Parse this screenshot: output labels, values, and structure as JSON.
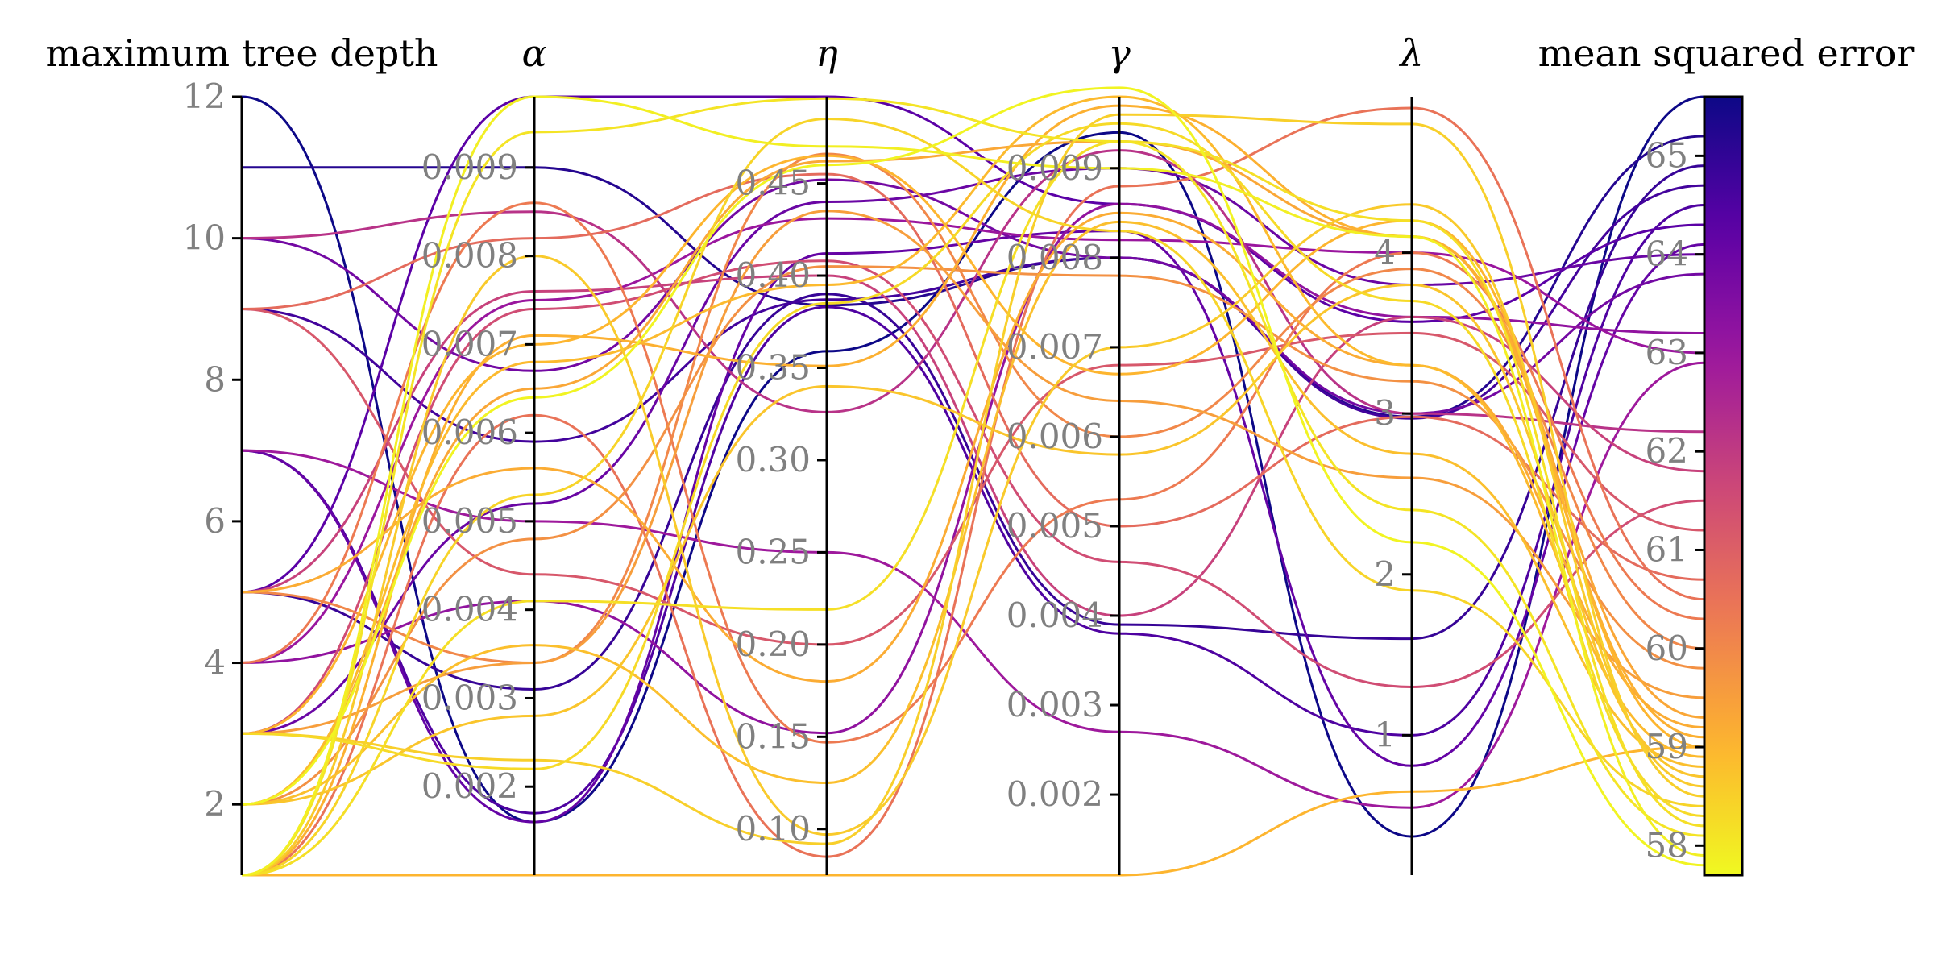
{
  "chart_data": {
    "type": "parallel-coordinates",
    "title": "",
    "colormap": "plasma",
    "colormap_stops": [
      "#0d0887",
      "#5c01a6",
      "#9c179e",
      "#cc4778",
      "#ed7953",
      "#fdb42f",
      "#f0f921"
    ],
    "axes": [
      {
        "key": "depth",
        "label": "maximum tree depth",
        "min": 1,
        "max": 12,
        "ticks": [
          2,
          4,
          6,
          8,
          10,
          12
        ],
        "tick_labels": [
          "2",
          "4",
          "6",
          "8",
          "10",
          "12"
        ]
      },
      {
        "key": "alpha",
        "label": "α",
        "min": 0.001,
        "max": 0.0098,
        "ticks": [
          0.002,
          0.003,
          0.004,
          0.005,
          0.006,
          0.007,
          0.008,
          0.009
        ],
        "tick_labels": [
          "0.002",
          "0.003",
          "0.004",
          "0.005",
          "0.006",
          "0.007",
          "0.008",
          "0.009"
        ]
      },
      {
        "key": "eta",
        "label": "η",
        "min": 0.075,
        "max": 0.497,
        "ticks": [
          0.1,
          0.15,
          0.2,
          0.25,
          0.3,
          0.35,
          0.4,
          0.45
        ],
        "tick_labels": [
          "0.10",
          "0.15",
          "0.20",
          "0.25",
          "0.30",
          "0.35",
          "0.40",
          "0.45"
        ]
      },
      {
        "key": "gamma",
        "label": "γ",
        "min": 0.0011,
        "max": 0.0098,
        "ticks": [
          0.002,
          0.003,
          0.004,
          0.005,
          0.006,
          0.007,
          0.008,
          0.009
        ],
        "tick_labels": [
          "0.002",
          "0.003",
          "0.004",
          "0.005",
          "0.006",
          "0.007",
          "0.008",
          "0.009"
        ]
      },
      {
        "key": "lambda",
        "label": "λ",
        "min": 0.13,
        "max": 4.97,
        "ticks": [
          1,
          2,
          3,
          4
        ],
        "tick_labels": [
          "1",
          "2",
          "3",
          "4"
        ]
      },
      {
        "key": "mse",
        "label": "mean squared error",
        "min": 57.7,
        "max": 65.6,
        "ticks": [
          58,
          59,
          60,
          61,
          62,
          63,
          64,
          65
        ],
        "tick_labels": [
          "58",
          "59",
          "60",
          "61",
          "62",
          "63",
          "64",
          "65"
        ]
      }
    ],
    "records": [
      [
        12,
        0.0016,
        0.359,
        0.0094,
        0.37,
        65.6
      ],
      [
        11,
        0.009,
        0.384,
        0.008,
        2.98,
        65.2
      ],
      [
        9,
        0.0059,
        0.387,
        0.008,
        2.97,
        64.7
      ],
      [
        7,
        0.0016,
        0.412,
        0.0083,
        0.81,
        64.1
      ],
      [
        7,
        0.0017,
        0.383,
        0.0038,
        1.0,
        64.5
      ],
      [
        5,
        0.0031,
        0.39,
        0.0039,
        1.6,
        64.9
      ],
      [
        5,
        0.0098,
        0.497,
        0.0086,
        3.57,
        64.3
      ],
      [
        7,
        0.005,
        0.25,
        0.0027,
        0.55,
        62.9
      ],
      [
        10,
        0.0067,
        0.452,
        0.008,
        3.0,
        63.8
      ],
      [
        3,
        0.0052,
        0.44,
        0.009,
        3.8,
        64.0
      ],
      [
        4,
        0.0075,
        0.431,
        0.0082,
        4.0,
        63.0
      ],
      [
        5,
        0.0076,
        0.4,
        0.004,
        3.6,
        61.8
      ],
      [
        9,
        0.0082,
        0.455,
        0.005,
        2.98,
        60.7
      ],
      [
        4,
        0.0041,
        0.152,
        0.0086,
        3.6,
        63.2
      ],
      [
        3,
        0.0074,
        0.408,
        0.0046,
        1.3,
        61.5
      ],
      [
        10,
        0.0085,
        0.326,
        0.0092,
        3.0,
        62.2
      ],
      [
        9,
        0.0044,
        0.2,
        0.0068,
        3.5,
        61.2
      ],
      [
        4,
        0.0086,
        0.147,
        0.0053,
        4.0,
        60.3
      ],
      [
        2,
        0.0048,
        0.405,
        0.0078,
        3.2,
        59.8
      ],
      [
        3,
        0.0034,
        0.435,
        0.0064,
        2.6,
        59.5
      ],
      [
        5,
        0.0056,
        0.18,
        0.0085,
        3.3,
        59.2
      ],
      [
        5,
        0.0034,
        0.466,
        0.006,
        3.9,
        60.0
      ],
      [
        3,
        0.007,
        0.465,
        0.0067,
        4.2,
        59.0
      ],
      [
        2,
        0.0068,
        0.395,
        0.0098,
        3.3,
        58.9
      ],
      [
        2,
        0.0036,
        0.125,
        0.0084,
        2.75,
        58.8
      ],
      [
        1,
        0.001,
        0.075,
        0.0011,
        0.65,
        59.0
      ],
      [
        3,
        0.0023,
        0.092,
        0.0096,
        4.8,
        58.5
      ],
      [
        1,
        0.0062,
        0.085,
        0.0088,
        4.9,
        60.5
      ],
      [
        1,
        0.008,
        0.097,
        0.007,
        4.3,
        58.6
      ],
      [
        2,
        0.0065,
        0.462,
        0.0093,
        4.1,
        59.3
      ],
      [
        1,
        0.0071,
        0.351,
        0.0097,
        4.1,
        59.1
      ],
      [
        3,
        0.0022,
        0.385,
        0.0095,
        3.7,
        58.3
      ],
      [
        1,
        0.0098,
        0.47,
        0.009,
        4.1,
        57.9
      ],
      [
        1,
        0.0094,
        0.496,
        0.0093,
        2.4,
        58.1
      ],
      [
        2,
        0.0028,
        0.34,
        0.0058,
        3.8,
        58.7
      ],
      [
        1,
        0.0041,
        0.219,
        0.0093,
        4.2,
        58.2
      ],
      [
        2,
        0.0064,
        0.46,
        0.0099,
        2.2,
        57.8
      ],
      [
        1,
        0.0053,
        0.485,
        0.0083,
        1.9,
        58.4
      ]
    ],
    "colorbar": {
      "label": "mean squared error",
      "min": 57.7,
      "max": 65.6,
      "ticks": [
        58,
        59,
        60,
        61,
        62,
        63,
        64,
        65
      ]
    }
  }
}
